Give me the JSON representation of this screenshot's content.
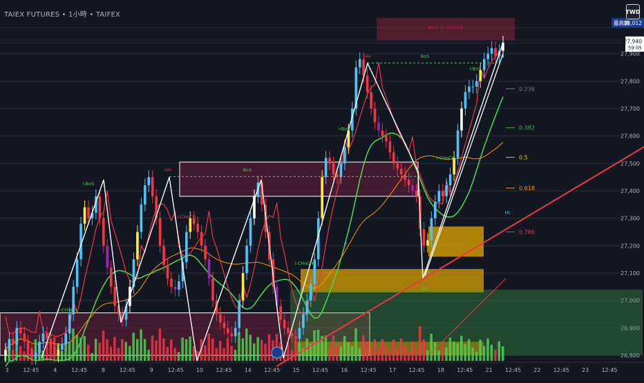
{
  "header": {
    "title": "TAIEX FUTURES • 1小時 • TAIFEX",
    "currency_button": "TWD"
  },
  "price_axis": {
    "ticks": [
      "27,900",
      "27,800",
      "27,700",
      "27,600",
      "27,500",
      "27,400",
      "27,300",
      "27,200",
      "27,100",
      "27,000",
      "26,900",
      "26,800"
    ],
    "values": [
      27900,
      27800,
      27700,
      27600,
      27500,
      27400,
      27300,
      27200,
      27100,
      27000,
      26900,
      26800
    ],
    "range": [
      26780,
      28020
    ]
  },
  "time_axis": {
    "labels": [
      "3",
      "12:45",
      "4",
      "12:45",
      "8",
      "12:45",
      "9",
      "12:45",
      "10",
      "12:45",
      "14",
      "12:45",
      "15",
      "12:45",
      "16",
      "12:45",
      "17",
      "12:45",
      "18",
      "12:45",
      "21",
      "12:45",
      "22",
      "12:45",
      "23",
      "12:45"
    ]
  },
  "badges": {
    "high": {
      "label": "最高價",
      "value": "28,012",
      "price": 28012,
      "color": "#1e3a8a"
    },
    "last": {
      "value": "27,940",
      "countdown": "59:05",
      "price": 27940
    }
  },
  "annotations": {
    "area_of_interest": "Area of Interest",
    "hh_right": "HH",
    "bos_right": "BoS",
    "hh_mid": "HH",
    "bos_mid": "BoS",
    "hh_left": "HH",
    "ibos": "i-BoS",
    "ichoch": "i-CHoCH",
    "ll": "LL",
    "hl": "HL",
    "p": "P"
  },
  "fibonacci": [
    {
      "label": "0.236",
      "price": 27772,
      "color": "#787b86"
    },
    {
      "label": "0.382",
      "price": 27630,
      "color": "#4caf50"
    },
    {
      "label": "0.5",
      "price": 27522,
      "color": "#e6c200"
    },
    {
      "label": "0.618",
      "price": 27410,
      "color": "#ff9800"
    },
    {
      "label": "0.786",
      "price": 27250,
      "color": "#f23645"
    }
  ],
  "chart_data": {
    "type": "line",
    "title": "TAIEX FUTURES • 1小時 • TAIFEX",
    "xlabel": "",
    "ylabel": "",
    "ylim": [
      26780,
      28020
    ],
    "grid": true,
    "series": [
      {
        "kind": "candlestick",
        "close": [
          26820,
          26860,
          26840,
          26900,
          26880,
          26850,
          26820,
          26790,
          26810,
          26850,
          26880,
          26860,
          26830,
          26800,
          26820,
          26840,
          26880,
          26950,
          27050,
          27150,
          27280,
          27340,
          27300,
          27320,
          27380,
          27300,
          27200,
          27120,
          27050,
          26980,
          26950,
          26930,
          26980,
          27050,
          27150,
          27250,
          27350,
          27420,
          27450,
          27380,
          27300,
          27200,
          27130,
          27080,
          27050,
          27040,
          27070,
          27140,
          27250,
          27300,
          27280,
          27250,
          27200,
          27150,
          27080,
          27000,
          26950,
          26920,
          26900,
          26880,
          26870,
          26900,
          27000,
          27100,
          27200,
          27300,
          27380,
          27430,
          27350,
          27250,
          27150,
          27050,
          26980,
          26930,
          26900,
          26880,
          26870,
          26860,
          26900,
          26950,
          27000,
          27060,
          27150,
          27300,
          27450,
          27520,
          27500,
          27460,
          27450,
          27500,
          27560,
          27620,
          27700,
          27850,
          27880,
          27820,
          27760,
          27700,
          27650,
          27620,
          27600,
          27580,
          27540,
          27500,
          27480,
          27460,
          27440,
          27420,
          27400,
          27380,
          27260,
          27200,
          27220,
          27300,
          27360,
          27400,
          27380,
          27420,
          27460,
          27520,
          27620,
          27700,
          27760,
          27780,
          27780,
          27800,
          27840,
          27880,
          27900,
          27920,
          27890,
          27910,
          27940
        ]
      }
    ]
  }
}
